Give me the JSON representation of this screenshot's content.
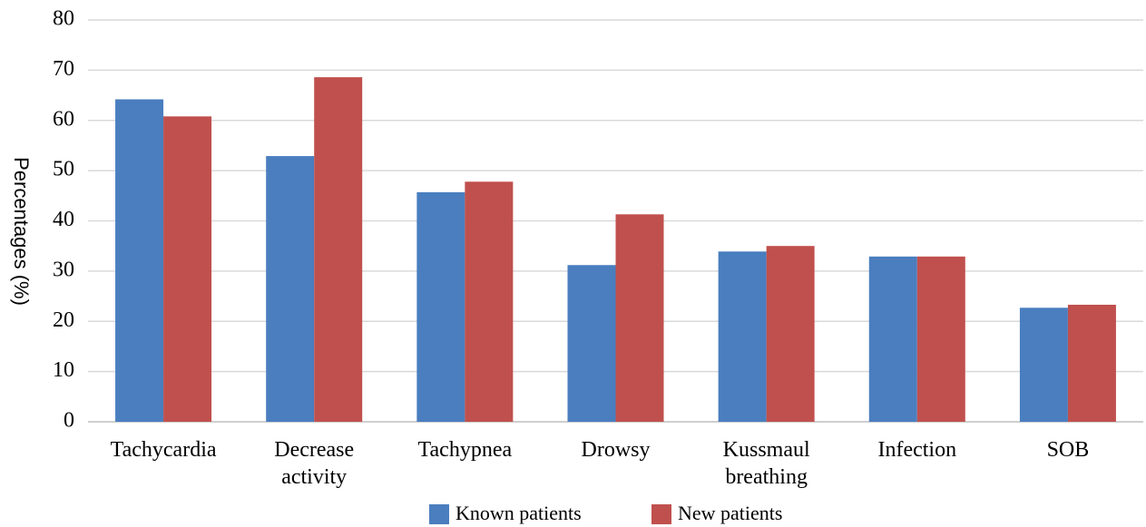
{
  "chart_data": {
    "type": "bar",
    "y_label": "Percentages (%)",
    "categories": [
      "Tachycardia",
      "Decrease activity",
      "Tachypnea",
      "Drowsy",
      "Kussmaul breathing",
      "Infection",
      "SOB"
    ],
    "series": [
      {
        "name": "Known patients",
        "color": "#4a7ebf",
        "values": [
          64.2,
          52.9,
          45.7,
          31.2,
          33.9,
          32.9,
          22.7
        ]
      },
      {
        "name": "New patients",
        "color": "#c0504d",
        "values": [
          60.8,
          68.6,
          47.8,
          41.3,
          35.0,
          32.9,
          23.3
        ]
      }
    ],
    "ylim": [
      0,
      80
    ],
    "yticks": [
      0,
      10,
      20,
      30,
      40,
      50,
      60,
      70,
      80
    ],
    "grid": true,
    "legend": "bottom"
  }
}
